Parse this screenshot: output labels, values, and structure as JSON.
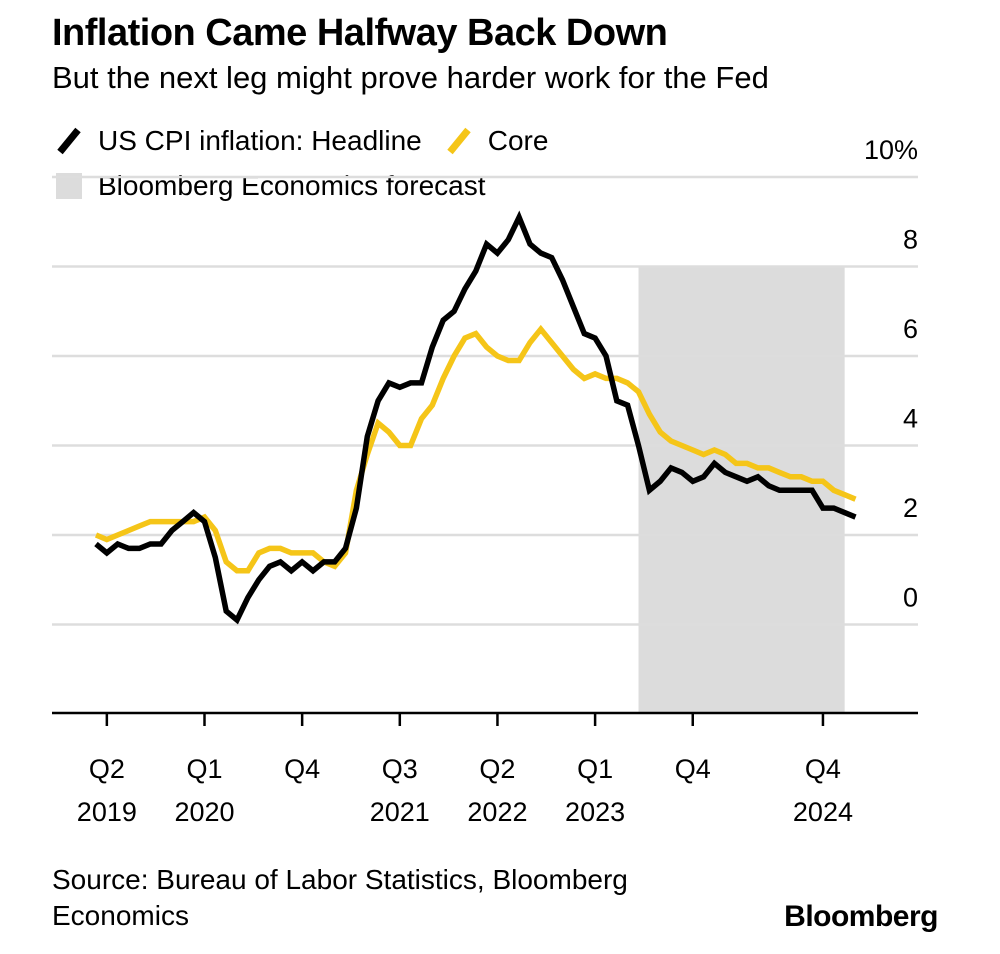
{
  "header": {
    "title": "Inflation Came Halfway Back Down",
    "subtitle": "But the next leg might prove harder work for the Fed"
  },
  "legend": {
    "headline": "US CPI inflation: Headline",
    "core": "Core",
    "forecast": "Bloomberg Economics forecast"
  },
  "footer": {
    "source": "Source: Bureau of Labor Statistics, Bloomberg Economics",
    "brand": "Bloomberg"
  },
  "colors": {
    "headline": "#000000",
    "core": "#f5c518",
    "forecast_band": "#dcdcdc",
    "grid": "#dddddd"
  },
  "chart_data": {
    "type": "line",
    "y_unit": "%",
    "ylim": [
      -0.7,
      10
    ],
    "y_ticks": [
      0,
      2,
      4,
      6,
      8,
      10
    ],
    "y_tick_labels": [
      "0",
      "2",
      "4",
      "6",
      "8",
      "10%"
    ],
    "grid": true,
    "x_start": "2019-05",
    "x_step": "month",
    "x_ticks": [
      {
        "month": "2019-06",
        "top": "Q2",
        "bottom": "2019"
      },
      {
        "month": "2020-03",
        "top": "Q1",
        "bottom": "2020"
      },
      {
        "month": "2020-12",
        "top": "Q4",
        "bottom": ""
      },
      {
        "month": "2021-09",
        "top": "Q3",
        "bottom": "2021"
      },
      {
        "month": "2022-06",
        "top": "Q2",
        "bottom": "2022"
      },
      {
        "month": "2023-03",
        "top": "Q1",
        "bottom": "2023"
      },
      {
        "month": "2023-12",
        "top": "Q4",
        "bottom": ""
      },
      {
        "month": "2024-12",
        "top": "Q4",
        "bottom": "2024"
      }
    ],
    "forecast_range": [
      "2023-07",
      "2025-02"
    ],
    "series": [
      {
        "name": "US CPI inflation: Headline",
        "color": "#000000",
        "values": [
          1.8,
          1.6,
          1.8,
          1.7,
          1.7,
          1.8,
          1.8,
          2.1,
          2.3,
          2.5,
          2.3,
          1.5,
          0.3,
          0.1,
          0.6,
          1.0,
          1.3,
          1.4,
          1.2,
          1.4,
          1.2,
          1.4,
          1.4,
          1.7,
          2.6,
          4.2,
          5.0,
          5.4,
          5.3,
          5.4,
          5.4,
          6.2,
          6.8,
          7.0,
          7.5,
          7.9,
          8.5,
          8.3,
          8.6,
          9.1,
          8.5,
          8.3,
          8.2,
          7.7,
          7.1,
          6.5,
          6.4,
          6.0,
          5.0,
          4.9,
          4.0,
          3.0,
          3.2,
          3.5,
          3.4,
          3.2,
          3.3,
          3.6,
          3.4,
          3.3,
          3.2,
          3.3,
          3.1,
          3.0,
          3.0,
          3.0,
          3.0,
          2.6,
          2.6,
          2.5,
          2.4
        ]
      },
      {
        "name": "Core",
        "color": "#f5c518",
        "values": [
          2.0,
          1.9,
          2.0,
          2.1,
          2.2,
          2.3,
          2.3,
          2.3,
          2.3,
          2.3,
          2.4,
          2.1,
          1.4,
          1.2,
          1.2,
          1.6,
          1.7,
          1.7,
          1.6,
          1.6,
          1.6,
          1.4,
          1.3,
          1.6,
          3.0,
          3.8,
          4.5,
          4.3,
          4.0,
          4.0,
          4.6,
          4.9,
          5.5,
          6.0,
          6.4,
          6.5,
          6.2,
          6.0,
          5.9,
          5.9,
          6.3,
          6.6,
          6.3,
          6.0,
          5.7,
          5.5,
          5.6,
          5.5,
          5.5,
          5.4,
          5.2,
          4.7,
          4.3,
          4.1,
          4.0,
          3.9,
          3.8,
          3.9,
          3.8,
          3.6,
          3.6,
          3.5,
          3.5,
          3.4,
          3.3,
          3.3,
          3.2,
          3.2,
          3.0,
          2.9,
          2.8
        ]
      }
    ]
  }
}
